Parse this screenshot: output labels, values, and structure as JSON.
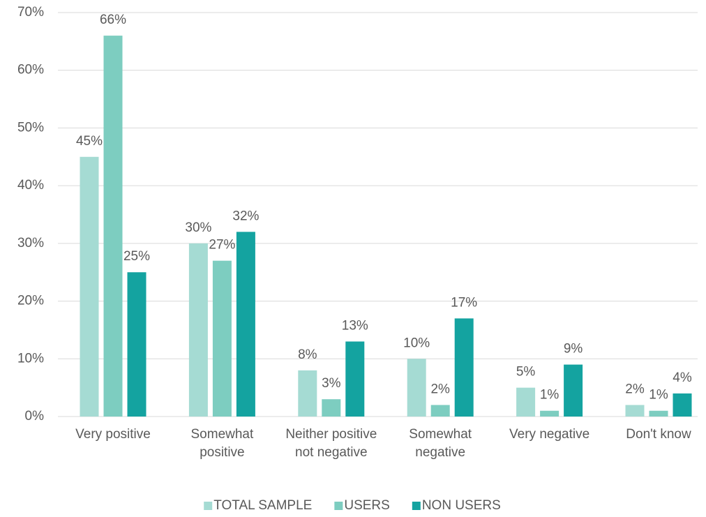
{
  "chart_data": {
    "type": "bar",
    "categories": [
      "Very positive",
      "Somewhat positive",
      "Neither positive not negative",
      "Somewhat negative",
      "Very negative",
      "Don't know"
    ],
    "series": [
      {
        "name": "TOTAL SAMPLE",
        "color": "#a5dbd3",
        "values": [
          45,
          30,
          8,
          10,
          5,
          2
        ],
        "value_labels": [
          "45%",
          "30%",
          "8%",
          "10%",
          "5%",
          "2%"
        ]
      },
      {
        "name": "USERS",
        "color": "#7dcdc0",
        "values": [
          66,
          27,
          3,
          2,
          1,
          1
        ],
        "value_labels": [
          "66%",
          "27%",
          "3%",
          "2%",
          "1%",
          "1%"
        ]
      },
      {
        "name": "NON USERS",
        "color": "#14a3a0",
        "values": [
          25,
          32,
          13,
          17,
          9,
          4
        ],
        "value_labels": [
          "25%",
          "32%",
          "13%",
          "17%",
          "9%",
          "4%"
        ]
      }
    ],
    "ylim": [
      0,
      70
    ],
    "yticks": [
      {
        "value": 0,
        "label": "0%"
      },
      {
        "value": 10,
        "label": "10%"
      },
      {
        "value": 20,
        "label": "20%"
      },
      {
        "value": 30,
        "label": "30%"
      },
      {
        "value": 40,
        "label": "40%"
      },
      {
        "value": 50,
        "label": "50%"
      },
      {
        "value": 60,
        "label": "60%"
      },
      {
        "value": 70,
        "label": "70%"
      }
    ],
    "grid": true,
    "legend": "bottom"
  }
}
